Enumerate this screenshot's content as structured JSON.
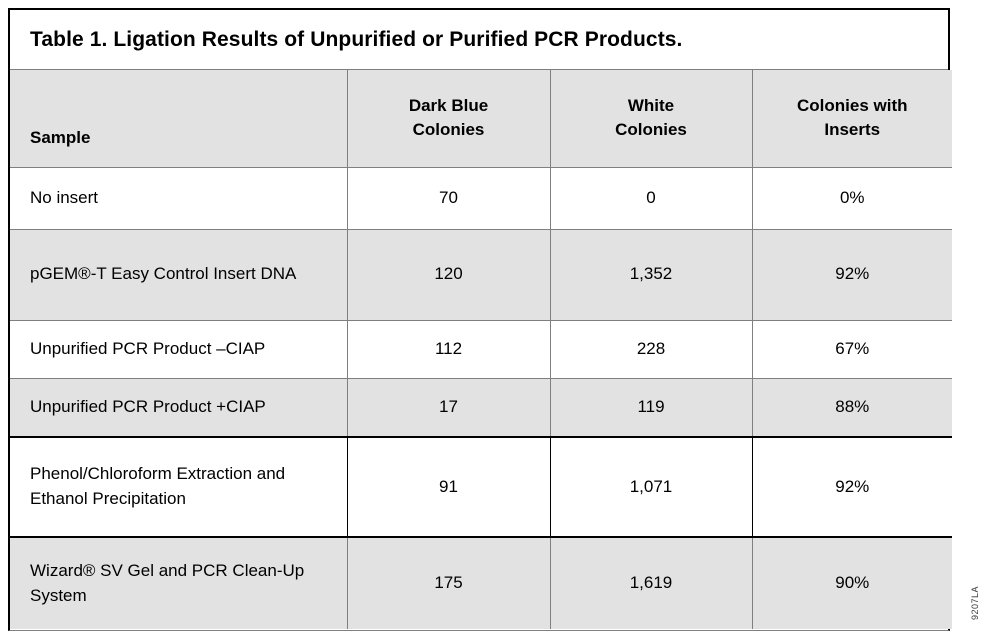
{
  "title": "Table 1. Ligation Results of Unpurified or Purified PCR Products.",
  "table": {
    "headers": [
      {
        "lines": [
          "Sample"
        ]
      },
      {
        "lines": [
          "Dark Blue",
          "Colonies"
        ]
      },
      {
        "lines": [
          "White",
          "Colonies"
        ]
      },
      {
        "lines": [
          "Colonies with",
          "Inserts"
        ]
      }
    ],
    "rows": [
      {
        "cells": [
          "No insert",
          "70",
          "0",
          "0%"
        ]
      },
      {
        "cells": [
          "pGEM®-T Easy Control Insert DNA",
          "120",
          "1,352",
          "92%"
        ]
      },
      {
        "cells": [
          "Unpurified PCR Product –CIAP",
          "112",
          "228",
          "67%"
        ]
      },
      {
        "cells": [
          "Unpurified PCR Product +CIAP",
          "17",
          "119",
          "88%"
        ]
      },
      {
        "cells": [
          "Phenol/Chloroform Extraction and Ethanol Precipitation",
          "91",
          "1,071",
          "92%"
        ]
      },
      {
        "cells": [
          "Wizard® SV Gel and PCR Clean-Up System",
          "175",
          "1,619",
          "90%"
        ]
      }
    ]
  },
  "figure_code": "9207LA",
  "colors": {
    "shaded_row_bg": "#e2e2e2",
    "grid_line": "#7f7f7f",
    "outer_border": "#000000",
    "text_color": "#000000"
  }
}
